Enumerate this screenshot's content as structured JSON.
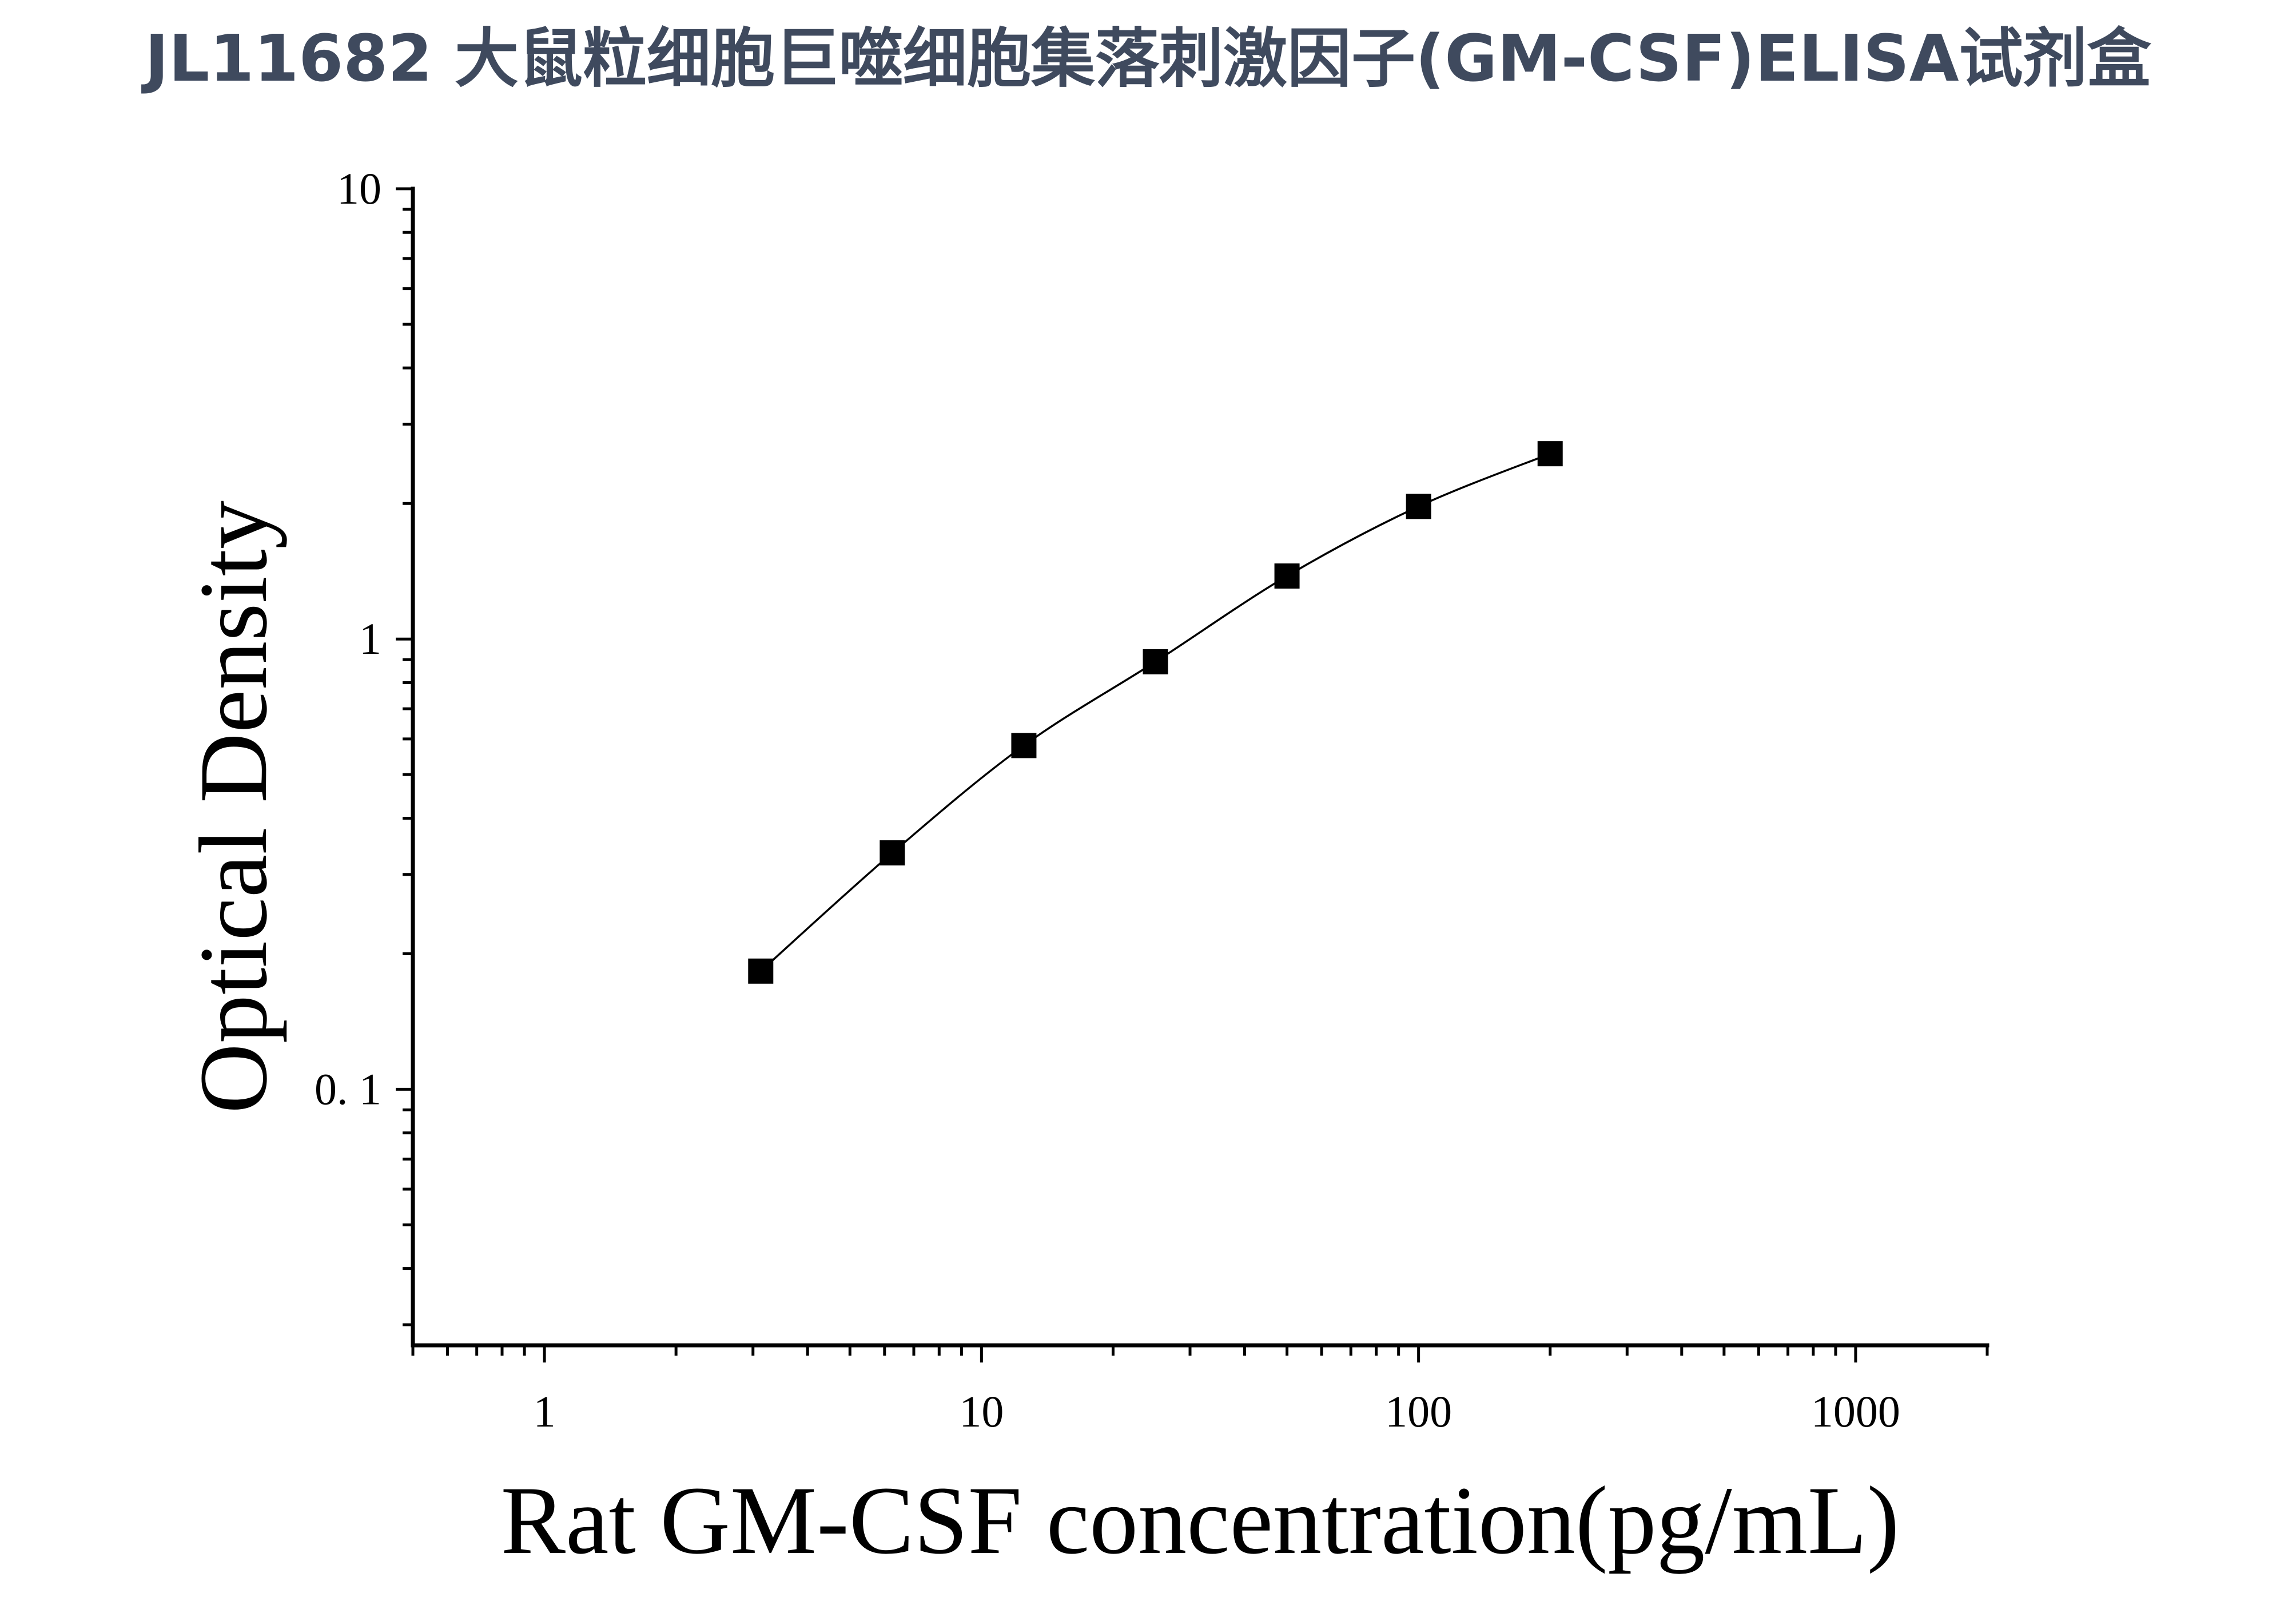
{
  "colors": {
    "title": "#3f4a5e",
    "axis": "#000000",
    "marker": "#000000",
    "curve": "#000000",
    "background": "#ffffff"
  },
  "chart_data": {
    "type": "scatter",
    "title": "JL11682 大鼠粒细胞巨噬细胞集落刺激因子(GM-CSF)ELISA试剂盒",
    "xlabel": "Rat GM-CSF concentration(pg/mL)",
    "ylabel": "Optical Density",
    "x_scale": "log",
    "y_scale": "log",
    "xlim": [
      0.5,
      2000
    ],
    "ylim": [
      0.027,
      10
    ],
    "x_ticks": [
      {
        "value": 1,
        "label": "1"
      },
      {
        "value": 10,
        "label": "10"
      },
      {
        "value": 100,
        "label": "100"
      },
      {
        "value": 1000,
        "label": "1000"
      }
    ],
    "y_ticks": [
      {
        "value": 0.1,
        "label": "0. 1"
      },
      {
        "value": 1,
        "label": "1"
      },
      {
        "value": 10,
        "label": "10"
      }
    ],
    "grid": false,
    "legend": "none",
    "marker": "square",
    "fit_line": true,
    "series": [
      {
        "x": [
          3.125,
          6.25,
          12.5,
          25,
          50,
          100,
          200
        ],
        "y": [
          0.183,
          0.335,
          0.58,
          0.89,
          1.38,
          1.97,
          2.58
        ]
      }
    ]
  }
}
